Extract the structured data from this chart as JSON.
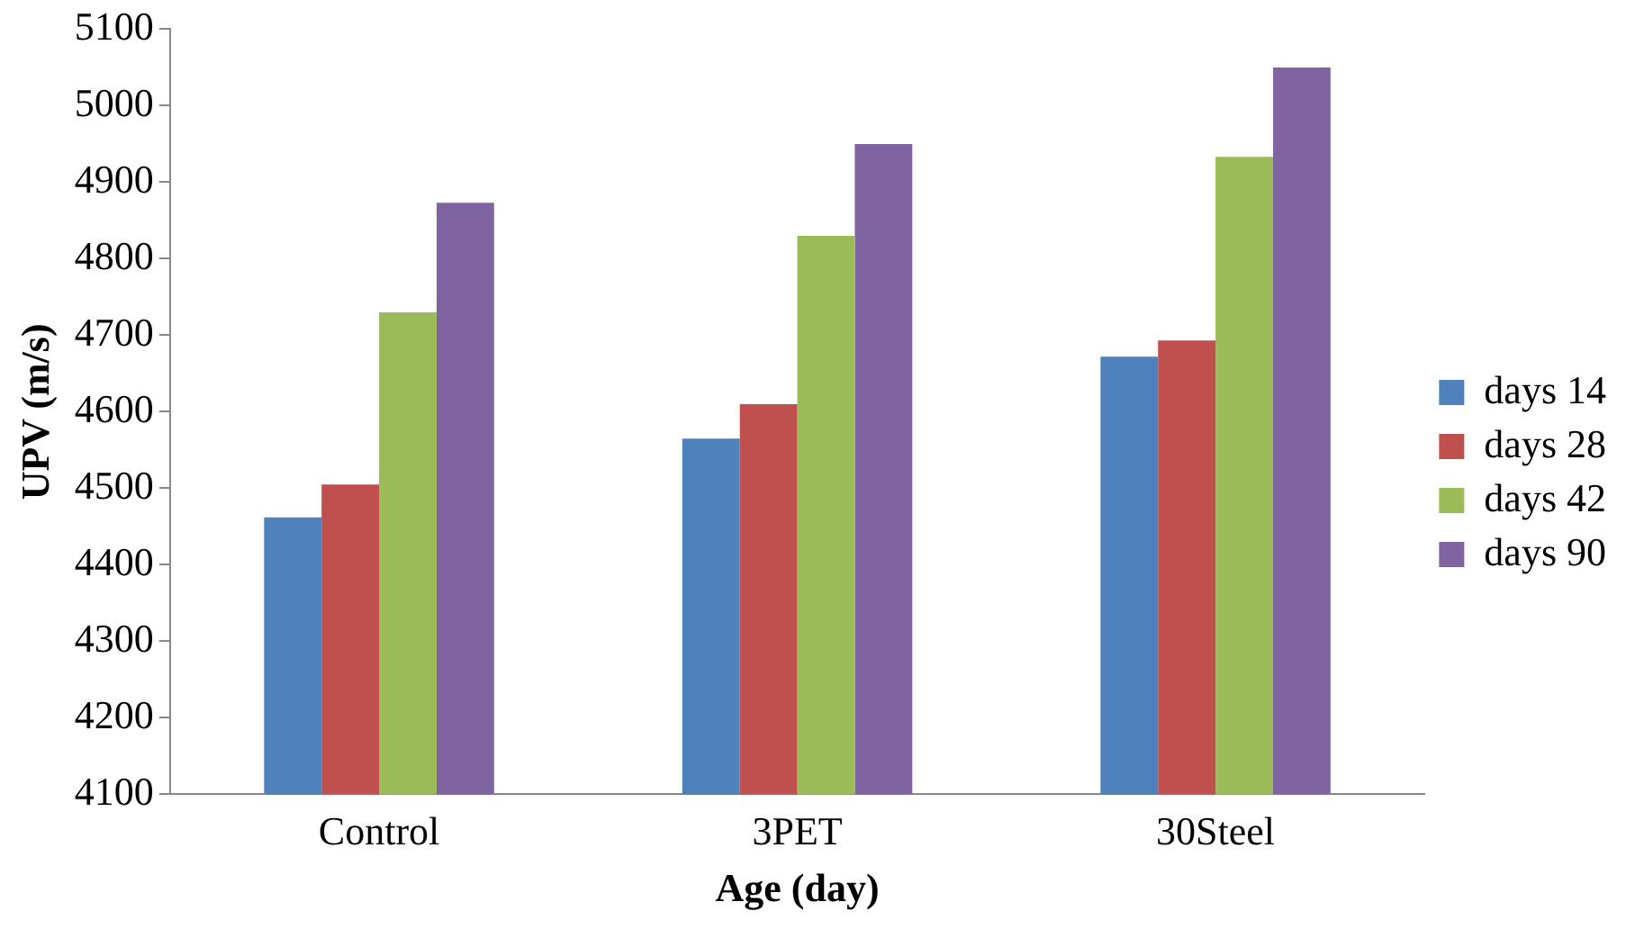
{
  "chart_data": {
    "type": "bar",
    "xlabel": "Age (day)",
    "ylabel": "UPV (m/s)",
    "categories": [
      "Control",
      "3PET",
      "30Steel"
    ],
    "series": [
      {
        "name": "days 14",
        "color": "#4f81bd",
        "values": [
          4462,
          4565,
          4672
        ]
      },
      {
        "name": "days 28",
        "color": "#c0504d",
        "values": [
          4505,
          4610,
          4693
        ]
      },
      {
        "name": "days 42",
        "color": "#9bbb59",
        "values": [
          4730,
          4830,
          4933
        ]
      },
      {
        "name": "days 90",
        "color": "#8064a2",
        "values": [
          4873,
          4950,
          5050
        ]
      }
    ],
    "ylim": [
      4100,
      5100
    ],
    "yticks": [
      4100,
      4200,
      4300,
      4400,
      4500,
      4600,
      4700,
      4800,
      4900,
      5000,
      5100
    ],
    "grid": false,
    "legend": "right"
  }
}
